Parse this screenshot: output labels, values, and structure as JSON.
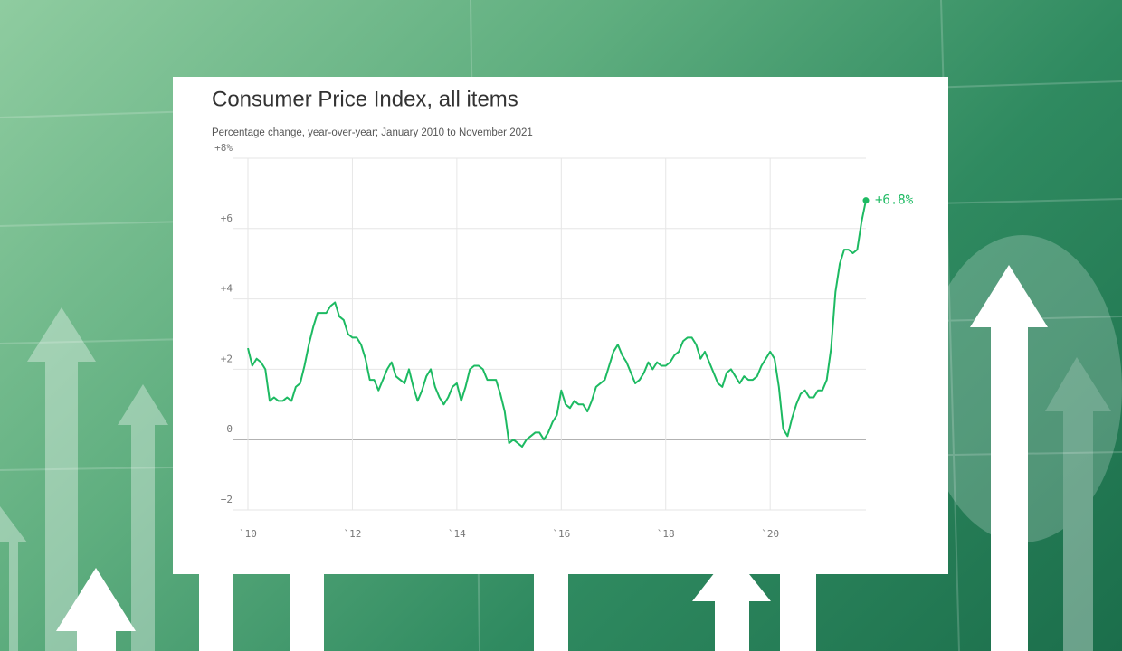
{
  "chart_data": {
    "type": "line",
    "title": "Consumer Price Index, all items",
    "subtitle": "Percentage change, year-over-year; January 2010 to November 2021",
    "x": [
      0,
      1,
      2,
      3,
      4,
      5,
      6,
      7,
      8,
      9,
      10,
      11,
      12,
      13,
      14,
      15,
      16,
      17,
      18,
      19,
      20,
      21,
      22,
      23,
      24,
      25,
      26,
      27,
      28,
      29,
      30,
      31,
      32,
      33,
      34,
      35,
      36,
      37,
      38,
      39,
      40,
      41,
      42,
      43,
      44,
      45,
      46,
      47,
      48,
      49,
      50,
      51,
      52,
      53,
      54,
      55,
      56,
      57,
      58,
      59,
      60,
      61,
      62,
      63,
      64,
      65,
      66,
      67,
      68,
      69,
      70,
      71,
      72,
      73,
      74,
      75,
      76,
      77,
      78,
      79,
      80,
      81,
      82,
      83,
      84,
      85,
      86,
      87,
      88,
      89,
      90,
      91,
      92,
      93,
      94,
      95,
      96,
      97,
      98,
      99,
      100,
      101,
      102,
      103,
      104,
      105,
      106,
      107,
      108,
      109,
      110,
      111,
      112,
      113,
      114,
      115,
      116,
      117,
      118,
      119,
      120,
      121,
      122,
      123,
      124,
      125,
      126,
      127,
      128,
      129,
      130,
      131,
      132,
      133,
      134,
      135,
      136,
      137,
      138,
      139,
      140,
      141,
      142
    ],
    "values": [
      2.6,
      2.1,
      2.3,
      2.2,
      2.0,
      1.1,
      1.2,
      1.1,
      1.1,
      1.2,
      1.1,
      1.5,
      1.6,
      2.1,
      2.7,
      3.2,
      3.6,
      3.6,
      3.6,
      3.8,
      3.9,
      3.5,
      3.4,
      3.0,
      2.9,
      2.9,
      2.7,
      2.3,
      1.7,
      1.7,
      1.4,
      1.7,
      2.0,
      2.2,
      1.8,
      1.7,
      1.6,
      2.0,
      1.5,
      1.1,
      1.4,
      1.8,
      2.0,
      1.5,
      1.2,
      1.0,
      1.2,
      1.5,
      1.6,
      1.1,
      1.5,
      2.0,
      2.1,
      2.1,
      2.0,
      1.7,
      1.7,
      1.7,
      1.3,
      0.8,
      -0.1,
      0.0,
      -0.1,
      -0.2,
      0.0,
      0.1,
      0.2,
      0.2,
      0.0,
      0.2,
      0.5,
      0.7,
      1.4,
      1.0,
      0.9,
      1.1,
      1.0,
      1.0,
      0.8,
      1.1,
      1.5,
      1.6,
      1.7,
      2.1,
      2.5,
      2.7,
      2.4,
      2.2,
      1.9,
      1.6,
      1.7,
      1.9,
      2.2,
      2.0,
      2.2,
      2.1,
      2.1,
      2.2,
      2.4,
      2.5,
      2.8,
      2.9,
      2.9,
      2.7,
      2.3,
      2.5,
      2.2,
      1.9,
      1.6,
      1.5,
      1.9,
      2.0,
      1.8,
      1.6,
      1.8,
      1.7,
      1.7,
      1.8,
      2.1,
      2.3,
      2.5,
      2.3,
      1.5,
      0.3,
      0.1,
      0.6,
      1.0,
      1.3,
      1.4,
      1.2,
      1.2,
      1.4,
      1.4,
      1.7,
      2.6,
      4.2,
      5.0,
      5.4,
      5.4,
      5.3,
      5.4,
      6.2,
      6.8
    ],
    "end_label": "+6.8%",
    "color": "#1dba62",
    "xlim": [
      0,
      142
    ],
    "xticks": [
      {
        "value": 0,
        "label": "`10"
      },
      {
        "value": 24,
        "label": "`12"
      },
      {
        "value": 48,
        "label": "`14"
      },
      {
        "value": 72,
        "label": "`16"
      },
      {
        "value": 96,
        "label": "`18"
      },
      {
        "value": 120,
        "label": "`20"
      }
    ],
    "ylim": [
      -2,
      8
    ],
    "yticks": [
      {
        "value": -2,
        "label": "−2"
      },
      {
        "value": 0,
        "label": "0"
      },
      {
        "value": 2,
        "label": "+2"
      },
      {
        "value": 4,
        "label": "+4"
      },
      {
        "value": 6,
        "label": "+6"
      },
      {
        "value": 8,
        "label": "+8%"
      }
    ],
    "grid": true
  }
}
